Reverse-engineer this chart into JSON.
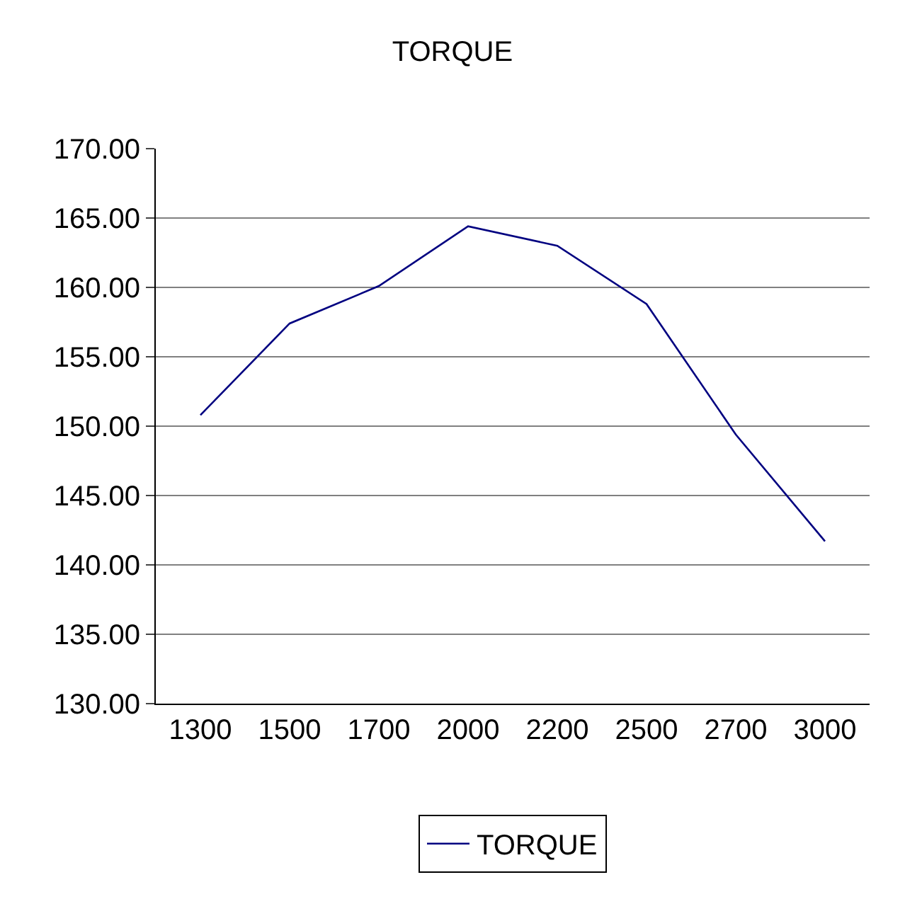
{
  "chart_data": {
    "type": "line",
    "title": "TORQUE",
    "categories": [
      "1300",
      "1500",
      "1700",
      "2000",
      "2200",
      "2500",
      "2700",
      "3000"
    ],
    "series": [
      {
        "name": "TORQUE",
        "color": "#000080",
        "values": [
          150.8,
          157.4,
          160.1,
          164.4,
          163.0,
          158.8,
          149.4,
          141.7
        ]
      }
    ],
    "ylim": [
      130,
      170
    ],
    "yticks": [
      {
        "value": 130,
        "label": "130.00"
      },
      {
        "value": 135,
        "label": "135.00"
      },
      {
        "value": 140,
        "label": "140.00"
      },
      {
        "value": 145,
        "label": "145.00"
      },
      {
        "value": 150,
        "label": "150.00"
      },
      {
        "value": 155,
        "label": "155.00"
      },
      {
        "value": 160,
        "label": "160.00"
      },
      {
        "value": 165,
        "label": "165.00"
      },
      {
        "value": 170,
        "label": "170.00"
      }
    ],
    "grid": "y",
    "legend": "bottom",
    "marker": "none",
    "line_style": "solid"
  }
}
